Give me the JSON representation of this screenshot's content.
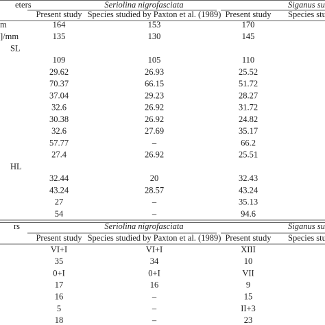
{
  "tables": [
    {
      "header": {
        "label": "eters",
        "groups": [
          "Seriolina nigrofasciata",
          "Siganus su"
        ],
        "subheaders": [
          "Present study",
          "Species studied by Paxton et al. (1989)",
          "Present study",
          "Species studie"
        ]
      },
      "rows": [
        {
          "label": "m",
          "values": [
            "164",
            "153",
            "170"
          ]
        },
        {
          "label": "]/mm",
          "values": [
            "135",
            "130",
            "145"
          ]
        },
        {
          "label": "SL"
        },
        {
          "values": [
            "109",
            "105",
            "110"
          ]
        },
        {
          "values": [
            "29.62",
            "26.93",
            "25.52"
          ]
        },
        {
          "values": [
            "70.37",
            "66.15",
            "51.72"
          ]
        },
        {
          "values": [
            "37.04",
            "29.23",
            "28.27"
          ]
        },
        {
          "values": [
            "32.6",
            "26.92",
            "31.72"
          ]
        },
        {
          "values": [
            "30.38",
            "26.92",
            "24.82"
          ]
        },
        {
          "values": [
            "32.6",
            "27.69",
            "35.17"
          ]
        },
        {
          "values": [
            "57.77",
            "–",
            "66.2"
          ]
        },
        {
          "values": [
            "27.4",
            "26.92",
            "25.51"
          ]
        },
        {
          "label": "HL"
        },
        {
          "values": [
            "32.44",
            "20",
            "32.43"
          ]
        },
        {
          "values": [
            "43.24",
            "28.57",
            "43.24"
          ]
        },
        {
          "values": [
            "27",
            "–",
            "35.13"
          ]
        },
        {
          "values": [
            "54",
            "–",
            "94.6"
          ]
        }
      ]
    },
    {
      "header": {
        "label": "rs",
        "groups": [
          "Seriolina nigrofasciata",
          "Siganus su"
        ],
        "subheaders": [
          "Present study",
          "Species studied by Paxton et al. (1989)",
          "Present study",
          "Species studie"
        ]
      },
      "rows": [
        {
          "values": [
            "VI+I",
            "VI+I",
            "XIII"
          ]
        },
        {
          "values": [
            "35",
            "34",
            "10"
          ]
        },
        {
          "values": [
            "0+I",
            "0+I",
            "VII"
          ]
        },
        {
          "values": [
            "17",
            "16",
            "9"
          ]
        },
        {
          "values": [
            "16",
            "–",
            "15"
          ]
        },
        {
          "values": [
            "5",
            "–",
            "II+3"
          ]
        },
        {
          "values": [
            "18",
            "–",
            "23"
          ]
        }
      ]
    }
  ]
}
